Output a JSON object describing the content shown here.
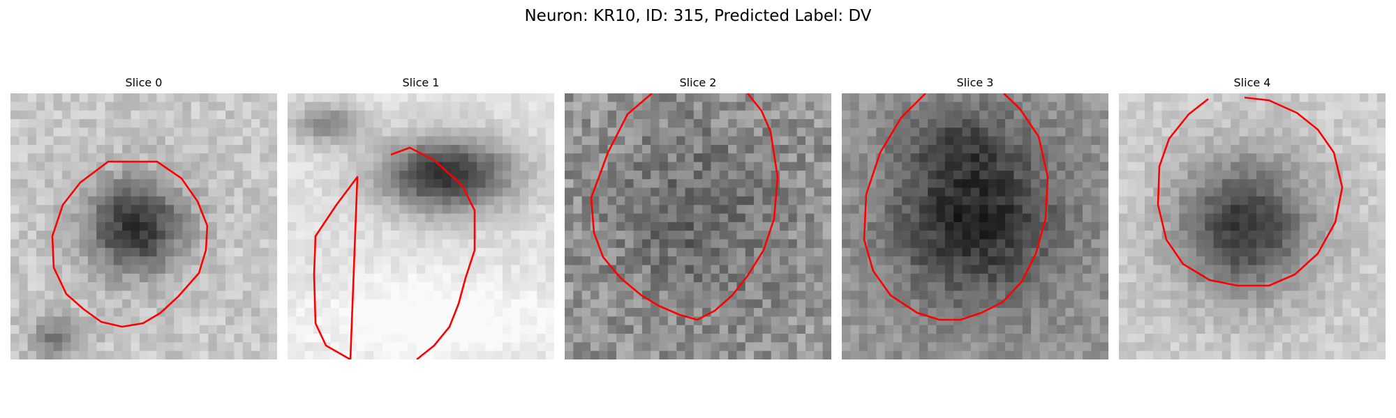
{
  "figure": {
    "title": "Neuron: KR10, ID: 315, Predicted Label: DV"
  },
  "contour_color": "#ff0000",
  "panels": [
    {
      "title": "Slice 0",
      "image": "grayscale microscopy patch of a neuron cell body with red segmentation contour"
    },
    {
      "title": "Slice 1",
      "image": "grayscale microscopy patch of a neuron cell body with red segmentation contour"
    },
    {
      "title": "Slice 2",
      "image": "grayscale microscopy patch of a neuron cell body with red segmentation contour"
    },
    {
      "title": "Slice 3",
      "image": "grayscale microscopy patch of a neuron cell body with red segmentation contour"
    },
    {
      "title": "Slice 4",
      "image": "grayscale microscopy patch of a neuron cell body with red segmentation contour"
    }
  ]
}
